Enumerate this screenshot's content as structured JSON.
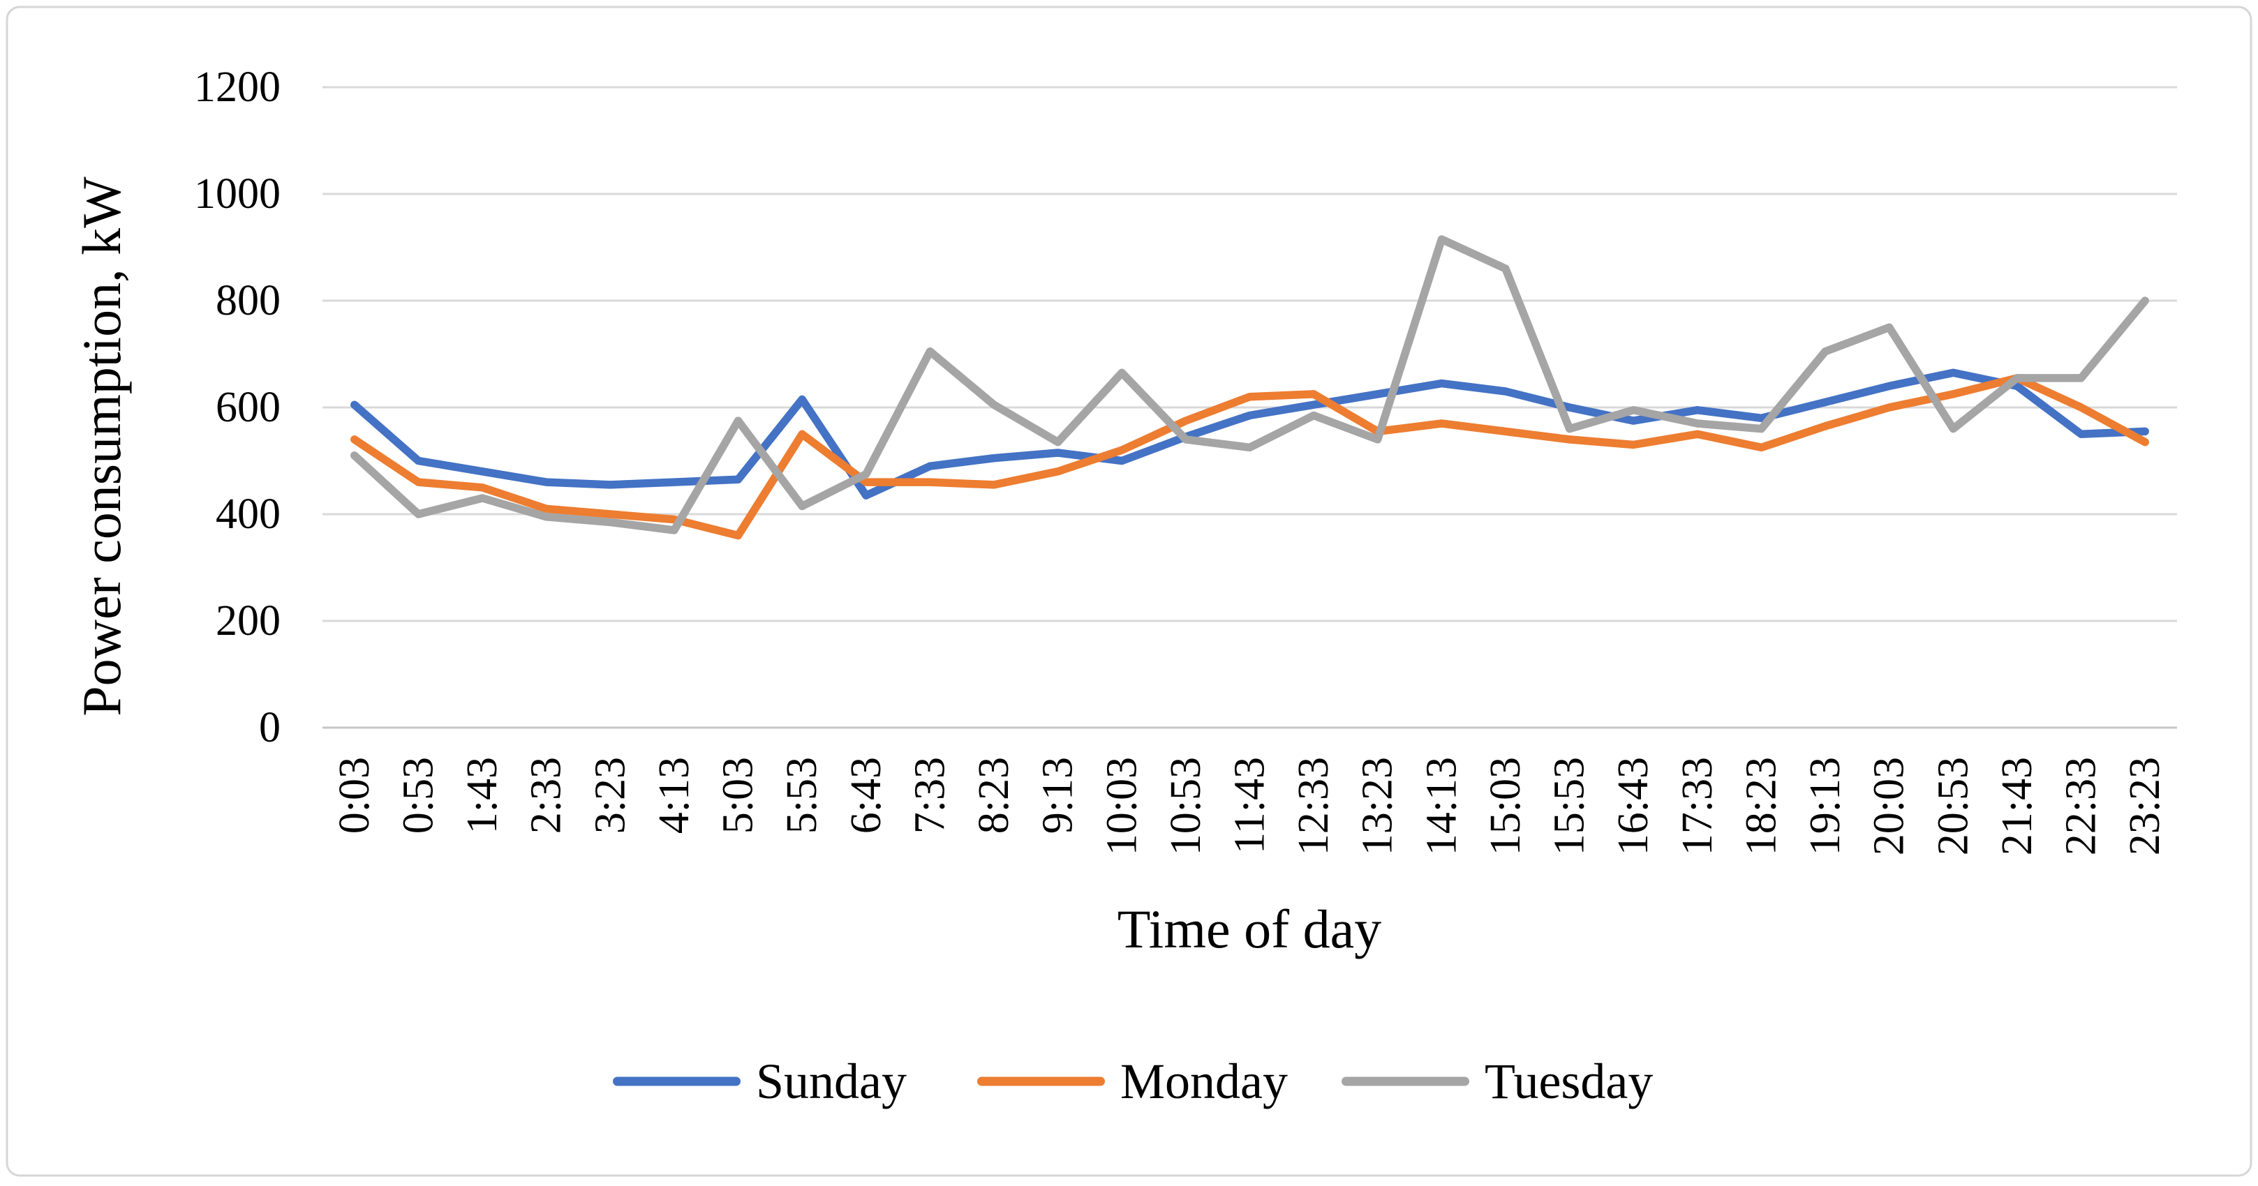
{
  "figure": {
    "border_color": "#d6d6d6",
    "background": "#ffffff"
  },
  "chart_data": {
    "type": "line",
    "title": "",
    "xlabel": "Time of day",
    "ylabel": "Power consumption, kW",
    "ylim": [
      0,
      1200
    ],
    "ytick_step": 200,
    "yticks": [
      0,
      200,
      400,
      600,
      800,
      1000,
      1200
    ],
    "grid": "horizontal",
    "gridline_color": "#d9d9d9",
    "axisline_color": "#c6c6c6",
    "legend_position": "bottom",
    "categories": [
      "0:03",
      "0:53",
      "1:43",
      "2:33",
      "3:23",
      "4:13",
      "5:03",
      "5:53",
      "6:43",
      "7:33",
      "8:23",
      "9:13",
      "10:03",
      "10:53",
      "11:43",
      "12:33",
      "13:23",
      "14:13",
      "15:03",
      "15:53",
      "16:43",
      "17:33",
      "18:23",
      "19:13",
      "20:03",
      "20:53",
      "21:43",
      "22:33",
      "23:23"
    ],
    "series": [
      {
        "name": "Sunday",
        "color": "#4472C4",
        "values": [
          605,
          500,
          480,
          460,
          455,
          460,
          465,
          615,
          435,
          490,
          505,
          515,
          500,
          545,
          585,
          605,
          625,
          645,
          630,
          600,
          575,
          595,
          580,
          610,
          640,
          665,
          640,
          550,
          555
        ]
      },
      {
        "name": "Monday",
        "color": "#ED7D31",
        "values": [
          540,
          460,
          450,
          410,
          400,
          390,
          360,
          550,
          460,
          460,
          455,
          480,
          520,
          575,
          620,
          625,
          555,
          570,
          555,
          540,
          530,
          550,
          525,
          565,
          600,
          625,
          655,
          600,
          535
        ]
      },
      {
        "name": "Tuesday",
        "color": "#A5A5A5",
        "values": [
          510,
          400,
          430,
          395,
          385,
          370,
          575,
          415,
          475,
          705,
          605,
          535,
          665,
          540,
          525,
          585,
          540,
          915,
          860,
          560,
          595,
          570,
          560,
          705,
          750,
          560,
          655,
          655,
          800
        ]
      }
    ]
  }
}
